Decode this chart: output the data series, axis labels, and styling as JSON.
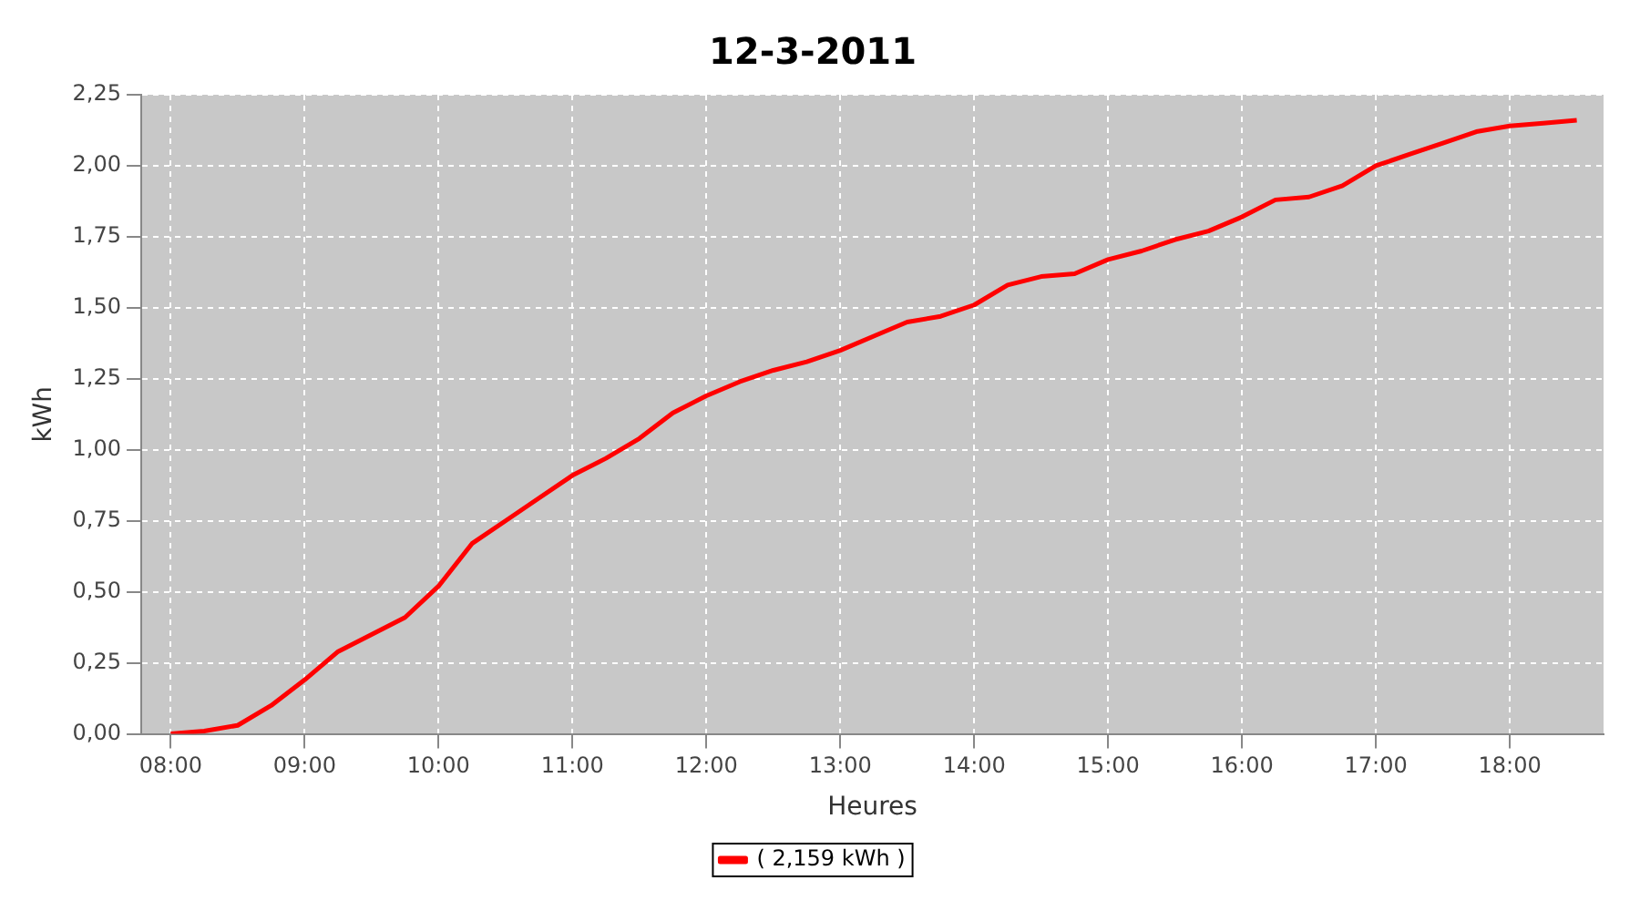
{
  "chart_data": {
    "type": "line",
    "title": "12-3-2011",
    "xlabel": "Heures",
    "ylabel": "kWh",
    "x": [
      8,
      8.25,
      8.5,
      8.75,
      9,
      9.25,
      9.5,
      9.75,
      10,
      10.25,
      10.5,
      10.75,
      11,
      11.25,
      11.5,
      11.75,
      12,
      12.25,
      12.5,
      12.75,
      13,
      13.25,
      13.5,
      13.75,
      14,
      14.25,
      14.5,
      14.75,
      15,
      15.25,
      15.5,
      15.75,
      16,
      16.25,
      16.5,
      16.75,
      17,
      17.25,
      17.5,
      17.75,
      18,
      18.25,
      18.5
    ],
    "series": [
      {
        "name": "( 2,159 kWh )",
        "color": "#ff0000",
        "values": [
          0,
          0.01,
          0.03,
          0.1,
          0.19,
          0.29,
          0.35,
          0.41,
          0.52,
          0.67,
          0.75,
          0.83,
          0.91,
          0.97,
          1.04,
          1.13,
          1.19,
          1.24,
          1.28,
          1.31,
          1.35,
          1.4,
          1.45,
          1.47,
          1.51,
          1.58,
          1.61,
          1.62,
          1.67,
          1.7,
          1.74,
          1.77,
          1.82,
          1.88,
          1.89,
          1.93,
          2,
          2.04,
          2.08,
          2.12,
          2.14,
          2.15,
          2.16
        ]
      }
    ],
    "xlim": [
      7.78,
      18.7
    ],
    "xticks": [
      {
        "value": 8,
        "label": "08:00"
      },
      {
        "value": 9,
        "label": "09:00"
      },
      {
        "value": 10,
        "label": "10:00"
      },
      {
        "value": 11,
        "label": "11:00"
      },
      {
        "value": 12,
        "label": "12:00"
      },
      {
        "value": 13,
        "label": "13:00"
      },
      {
        "value": 14,
        "label": "14:00"
      },
      {
        "value": 15,
        "label": "15:00"
      },
      {
        "value": 16,
        "label": "16:00"
      },
      {
        "value": 17,
        "label": "17:00"
      },
      {
        "value": 18,
        "label": "18:00"
      }
    ],
    "ylim": [
      0,
      2.25
    ],
    "yticks": [
      {
        "value": 0,
        "label": "0,00"
      },
      {
        "value": 0.25,
        "label": "0,25"
      },
      {
        "value": 0.5,
        "label": "0,50"
      },
      {
        "value": 0.75,
        "label": "0,75"
      },
      {
        "value": 1,
        "label": "1,00"
      },
      {
        "value": 1.25,
        "label": "1,25"
      },
      {
        "value": 1.5,
        "label": "1,50"
      },
      {
        "value": 1.75,
        "label": "1,75"
      },
      {
        "value": 2,
        "label": "2,00"
      },
      {
        "value": 2.25,
        "label": "2,25"
      }
    ],
    "grid": true,
    "legend": "bottom"
  }
}
